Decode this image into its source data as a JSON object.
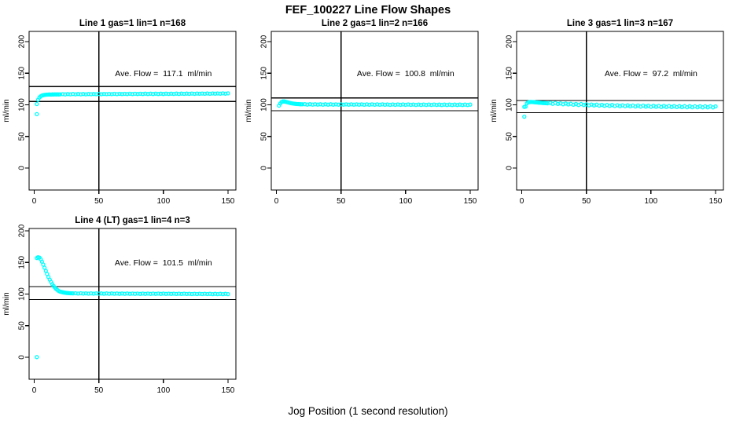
{
  "title": "FEF_100227  Line Flow Shapes",
  "xlabel": "Jog Position (1 second resolution)",
  "ylabel": "ml/min",
  "colors": {
    "points": "#00FFFF",
    "lines": "#000000",
    "background": "#FFFFFF"
  },
  "chart_data": {
    "type": "scatter",
    "marker": "open-circle",
    "x_ticks": [
      0,
      50,
      100,
      150
    ],
    "y_ticks": [
      0,
      50,
      100,
      150,
      200
    ],
    "xlim": [
      -6,
      156
    ],
    "ylim": [
      0,
      215
    ],
    "grid": false,
    "vline_x": 50,
    "ref_line_rule": "average flow +/- 10%",
    "panels": [
      {
        "title": "Line 1 gas=1 lin=1 n=168",
        "ave_flow": 117.1,
        "ave_flow_label": "Ave. Flow =  117.1  ml/min",
        "n": 168,
        "ref_lines": [
          128.8,
          105.4
        ],
        "vline": 50,
        "x": [
          2,
          2,
          3,
          4,
          5,
          6,
          7,
          8,
          9,
          10,
          11,
          12,
          13,
          14,
          15,
          16,
          17,
          18,
          19,
          20,
          22,
          24,
          26,
          28,
          30,
          32,
          34,
          36,
          38,
          40,
          42,
          44,
          46,
          48,
          50,
          52,
          54,
          56,
          58,
          60,
          62,
          64,
          66,
          68,
          70,
          72,
          74,
          76,
          78,
          80,
          82,
          84,
          86,
          88,
          90,
          92,
          94,
          96,
          98,
          100,
          102,
          104,
          106,
          108,
          110,
          112,
          114,
          116,
          118,
          120,
          122,
          124,
          126,
          128,
          130,
          132,
          134,
          136,
          138,
          140,
          142,
          144,
          146,
          148,
          150
        ],
        "y": [
          85.2,
          101.3,
          108.0,
          111.5,
          113.6,
          114.7,
          115.3,
          115.7,
          116.0,
          116.2,
          116.3,
          116.4,
          116.2,
          116.5,
          116.3,
          116.6,
          116.4,
          116.6,
          116.4,
          116.7,
          116.9,
          116.5,
          117.0,
          116.6,
          117.1,
          116.6,
          117.1,
          116.7,
          117.2,
          116.7,
          117.2,
          116.8,
          117.2,
          116.8,
          117.3,
          116.8,
          117.3,
          116.9,
          117.3,
          116.9,
          117.4,
          116.9,
          117.4,
          117.0,
          117.4,
          117.0,
          117.5,
          117.0,
          117.5,
          117.1,
          117.5,
          117.1,
          117.6,
          117.1,
          117.6,
          117.2,
          117.6,
          117.2,
          117.7,
          117.2,
          117.7,
          117.3,
          117.7,
          117.3,
          117.8,
          117.3,
          117.8,
          117.4,
          117.8,
          117.4,
          117.9,
          117.4,
          117.9,
          117.5,
          117.9,
          117.5,
          118.0,
          117.5,
          118.0,
          117.6,
          118.0,
          117.6,
          118.1,
          117.6,
          118.1
        ]
      },
      {
        "title": "Line 2 gas=1 lin=2 n=166",
        "ave_flow": 100.8,
        "ave_flow_label": "Ave. Flow =  100.8  ml/min",
        "n": 166,
        "ref_lines": [
          110.9,
          90.7
        ],
        "vline": 50,
        "x": [
          2,
          3,
          4,
          5,
          6,
          7,
          8,
          9,
          10,
          11,
          12,
          13,
          14,
          15,
          16,
          17,
          18,
          19,
          20,
          22,
          24,
          26,
          28,
          30,
          32,
          34,
          36,
          38,
          40,
          42,
          44,
          46,
          48,
          50,
          52,
          54,
          56,
          58,
          60,
          62,
          64,
          66,
          68,
          70,
          72,
          74,
          76,
          78,
          80,
          82,
          84,
          86,
          88,
          90,
          92,
          94,
          96,
          98,
          100,
          102,
          104,
          106,
          108,
          110,
          112,
          114,
          116,
          118,
          120,
          122,
          124,
          126,
          128,
          130,
          132,
          134,
          136,
          138,
          140,
          142,
          144,
          146,
          148,
          150
        ],
        "y": [
          98.8,
          102.0,
          104.5,
          105.3,
          105.4,
          105.0,
          104.4,
          103.8,
          103.2,
          102.7,
          102.3,
          102.0,
          101.7,
          101.5,
          101.3,
          101.2,
          101.0,
          100.9,
          100.9,
          101.0,
          100.4,
          101.0,
          100.4,
          100.9,
          100.4,
          100.9,
          100.3,
          100.9,
          100.3,
          100.9,
          100.3,
          100.8,
          100.3,
          100.8,
          100.2,
          100.8,
          100.2,
          100.8,
          100.2,
          100.8,
          100.2,
          100.7,
          100.1,
          100.7,
          100.1,
          100.7,
          100.1,
          100.7,
          100.1,
          100.7,
          100.1,
          100.6,
          100.0,
          100.6,
          100.0,
          100.6,
          100.0,
          100.6,
          100.0,
          100.6,
          100.0,
          100.5,
          99.9,
          100.5,
          99.9,
          100.5,
          99.9,
          100.5,
          99.9,
          100.5,
          99.9,
          100.4,
          99.8,
          100.4,
          99.8,
          100.4,
          99.8,
          100.4,
          99.8,
          100.4,
          99.8,
          100.4,
          99.8,
          100.4
        ]
      },
      {
        "title": "Line 3 gas=1 lin=3 n=167",
        "ave_flow": 97.2,
        "ave_flow_label": "Ave. Flow =  97.2  ml/min",
        "n": 167,
        "ref_lines": [
          106.9,
          87.5
        ],
        "vline": 50,
        "x": [
          2,
          2,
          3,
          4,
          5,
          6,
          7,
          8,
          9,
          10,
          11,
          12,
          13,
          14,
          15,
          16,
          17,
          18,
          19,
          20,
          22,
          24,
          26,
          28,
          30,
          32,
          34,
          36,
          38,
          40,
          42,
          44,
          46,
          48,
          50,
          52,
          54,
          56,
          58,
          60,
          62,
          64,
          66,
          68,
          70,
          72,
          74,
          76,
          78,
          80,
          82,
          84,
          86,
          88,
          90,
          92,
          94,
          96,
          98,
          100,
          102,
          104,
          106,
          108,
          110,
          112,
          114,
          116,
          118,
          120,
          122,
          124,
          126,
          128,
          130,
          132,
          134,
          136,
          138,
          140,
          142,
          144,
          146,
          148,
          150
        ],
        "y": [
          81.2,
          96.8,
          97.3,
          102.4,
          103.9,
          104.4,
          104.6,
          104.5,
          104.3,
          104.1,
          103.9,
          103.7,
          103.5,
          103.4,
          103.2,
          103.0,
          102.9,
          102.7,
          102.6,
          102.4,
          103.2,
          101.6,
          103.0,
          101.4,
          102.4,
          100.9,
          102.1,
          100.6,
          101.8,
          100.1,
          101.4,
          99.8,
          101.2,
          99.6,
          100.8,
          99.3,
          100.5,
          99.0,
          100.2,
          98.8,
          100.0,
          98.5,
          99.7,
          98.3,
          99.7,
          98.1,
          99.4,
          97.9,
          99.2,
          97.8,
          99.1,
          97.6,
          98.9,
          97.4,
          98.9,
          97.3,
          98.7,
          97.1,
          98.5,
          96.9,
          98.4,
          96.9,
          98.3,
          96.7,
          98.3,
          96.6,
          98.1,
          96.5,
          98.0,
          96.4,
          97.9,
          96.3,
          97.9,
          96.2,
          97.8,
          96.1,
          97.7,
          96.1,
          97.7,
          96.0,
          97.6,
          96.0,
          97.6,
          95.9,
          97.5
        ]
      },
      {
        "title": "Line 4 (LT) gas=1 lin=4 n=3",
        "ave_flow": 101.5,
        "ave_flow_label": "Ave. Flow =  101.5  ml/min",
        "n": 3,
        "ref_lines": [
          111.7,
          91.4
        ],
        "vline": 50,
        "x": [
          2,
          2,
          3,
          4,
          5,
          6,
          7,
          8,
          9,
          10,
          11,
          12,
          13,
          14,
          15,
          16,
          17,
          18,
          19,
          20,
          21,
          22,
          23,
          24,
          25,
          26,
          27,
          28,
          29,
          30,
          32,
          34,
          36,
          38,
          40,
          42,
          44,
          46,
          48,
          50,
          52,
          54,
          56,
          58,
          60,
          62,
          64,
          66,
          68,
          70,
          72,
          74,
          76,
          78,
          80,
          82,
          84,
          86,
          88,
          90,
          92,
          94,
          96,
          98,
          100,
          102,
          104,
          106,
          108,
          110,
          112,
          114,
          116,
          118,
          120,
          122,
          124,
          126,
          128,
          130,
          132,
          134,
          136,
          138,
          140,
          142,
          144,
          146,
          148,
          150
        ],
        "y": [
          0.3,
          157.0,
          158.2,
          157.6,
          155.2,
          151.3,
          146.6,
          141.6,
          136.6,
          131.7,
          127.1,
          122.9,
          119.1,
          115.7,
          112.8,
          110.2,
          108.1,
          106.3,
          104.8,
          103.9,
          103.3,
          102.8,
          102.4,
          102.1,
          101.8,
          101.6,
          101.4,
          101.3,
          101.2,
          101.1,
          101.2,
          100.7,
          101.2,
          100.7,
          101.1,
          100.6,
          101.1,
          100.6,
          101.1,
          100.6,
          101.0,
          100.5,
          101.0,
          100.5,
          101.0,
          100.5,
          100.9,
          100.4,
          100.9,
          100.4,
          100.9,
          100.4,
          100.8,
          100.4,
          100.8,
          100.3,
          100.8,
          100.3,
          100.8,
          100.3,
          100.7,
          100.2,
          100.7,
          100.2,
          100.7,
          100.2,
          100.6,
          100.2,
          100.6,
          100.1,
          100.6,
          100.1,
          100.6,
          100.1,
          100.5,
          100.0,
          100.5,
          100.0,
          100.5,
          100.0,
          100.5,
          100.0,
          100.4,
          99.9,
          100.4,
          99.9,
          100.4,
          99.9,
          100.4,
          99.9
        ]
      }
    ]
  }
}
